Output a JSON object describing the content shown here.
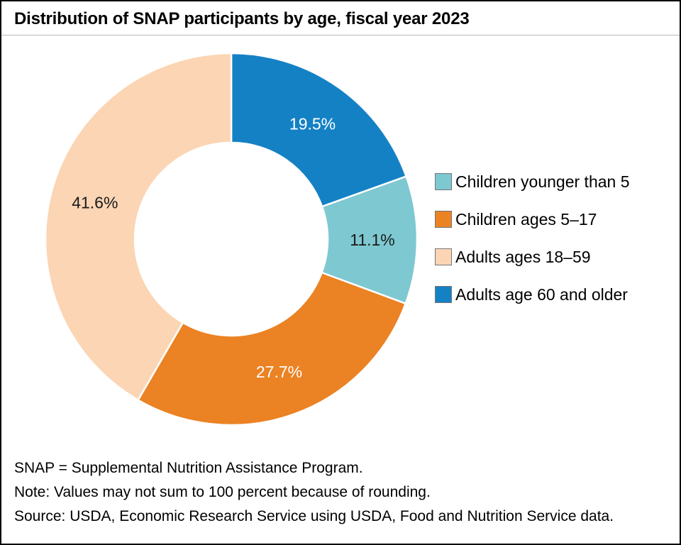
{
  "chart_data": {
    "type": "pie",
    "subtype": "donut",
    "title": "Distribution of SNAP participants by age, fiscal year 2023",
    "unit": "percent of participants",
    "direction": "clockwise",
    "start_angle_deg": 0,
    "start_index": 3,
    "legend_position": "right",
    "slices": [
      {
        "label": "Children younger than 5",
        "value": 11.1,
        "display": "11.1%",
        "color": "#7ec8d1",
        "value_label_color": "#1a1a1a"
      },
      {
        "label": "Children ages 5–17",
        "value": 27.7,
        "display": "27.7%",
        "color": "#eb8223",
        "value_label_color": "#ffffff"
      },
      {
        "label": "Adults ages 18–59",
        "value": 41.6,
        "display": "41.6%",
        "color": "#fbd5b4",
        "value_label_color": "#1a1a1a"
      },
      {
        "label": "Adults age 60 and older",
        "value": 19.5,
        "display": "19.5%",
        "color": "#1581c5",
        "value_label_color": "#ffffff"
      }
    ]
  },
  "notes": [
    "SNAP = Supplemental Nutrition Assistance Program.",
    "Note: Values may not sum to 100 percent because of rounding.",
    "Source: USDA, Economic Research Service using USDA, Food and Nutrition Service data."
  ]
}
